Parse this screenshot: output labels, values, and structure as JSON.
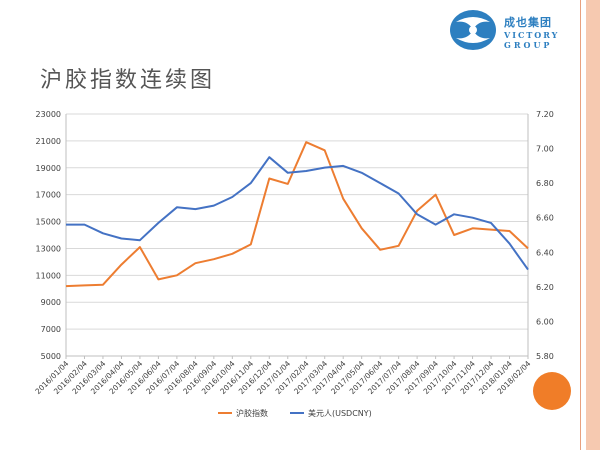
{
  "page": {
    "title": "沪胶指数连续图",
    "logo": {
      "cn": "成也集团",
      "en_line1": "VICTORY",
      "en_line2": "GROUP"
    }
  },
  "colors": {
    "series_a": "#ed7d31",
    "series_b": "#4472c4",
    "grid": "#d9d9d9",
    "text": "#404040",
    "accent_band": "#f6c9b0"
  },
  "chart_data": {
    "type": "line",
    "x_labels": [
      "2016/01/04",
      "2016/02/04",
      "2016/03/04",
      "2016/04/04",
      "2016/05/04",
      "2016/06/04",
      "2016/07/04",
      "2016/08/04",
      "2016/09/04",
      "2016/10/04",
      "2016/11/04",
      "2016/12/04",
      "2017/01/04",
      "2017/02/04",
      "2017/03/04",
      "2017/04/04",
      "2017/05/04",
      "2017/06/04",
      "2017/07/04",
      "2017/08/04",
      "2017/09/04",
      "2017/10/04",
      "2017/11/04",
      "2017/12/04",
      "2018/01/04",
      "2018/02/04"
    ],
    "y_left": {
      "ticks": [
        "5000",
        "7000",
        "9000",
        "11000",
        "13000",
        "15000",
        "17000",
        "19000",
        "21000",
        "23000"
      ],
      "ylim": [
        5000,
        23000
      ]
    },
    "y_right": {
      "ticks": [
        "5.80",
        "6.00",
        "6.20",
        "6.40",
        "6.60",
        "6.80",
        "7.00",
        "7.20"
      ],
      "ylim": [
        5.8,
        7.2
      ]
    },
    "legend_position": "bottom",
    "series": [
      {
        "name": "沪胶指数",
        "axis": "left",
        "color": "#ed7d31",
        "values": [
          10200,
          10250,
          10300,
          11800,
          13100,
          10700,
          11000,
          11900,
          12200,
          12600,
          13300,
          18200,
          17800,
          20900,
          20300,
          16700,
          14500,
          12900,
          13200,
          15800,
          17000,
          14000,
          14500,
          14400,
          14300,
          13000
        ]
      },
      {
        "name": "美元人(USDCNY)",
        "axis": "right",
        "color": "#4472c4",
        "values": [
          6.56,
          6.56,
          6.51,
          6.48,
          6.47,
          6.57,
          6.66,
          6.65,
          6.67,
          6.72,
          6.8,
          6.95,
          6.86,
          6.87,
          6.89,
          6.9,
          6.86,
          6.8,
          6.74,
          6.62,
          6.56,
          6.62,
          6.6,
          6.57,
          6.45,
          6.3
        ]
      }
    ]
  }
}
